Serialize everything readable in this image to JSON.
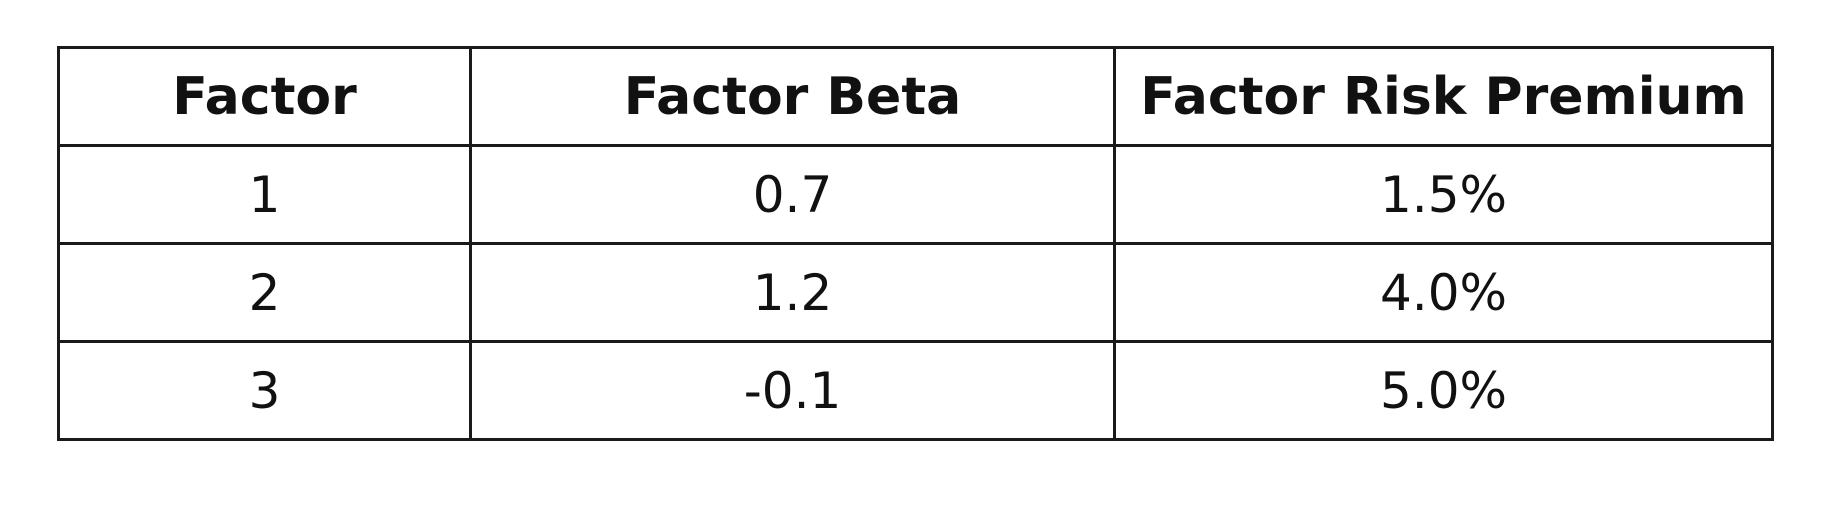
{
  "table": {
    "headers": [
      "Factor",
      "Factor Beta",
      "Factor Risk Premium"
    ],
    "rows": [
      [
        "1",
        "0.7",
        "1.5%"
      ],
      [
        "2",
        "1.2",
        "4.0%"
      ],
      [
        "3",
        "-0.1",
        "5.0%"
      ]
    ]
  }
}
